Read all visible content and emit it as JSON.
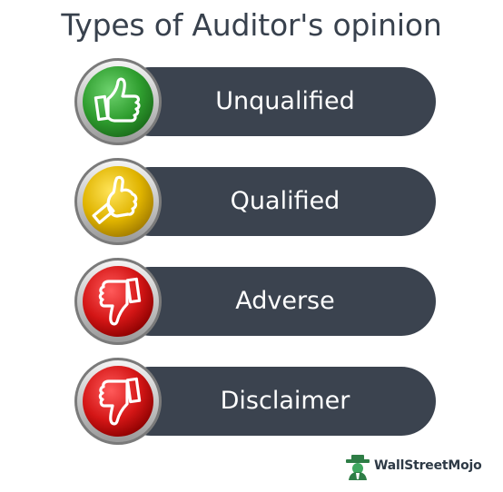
{
  "title": "Types of Auditor's opinion",
  "items": [
    {
      "label": "Unqualified",
      "color": "#2f9e2f",
      "icon": "thumbs-up-icon"
    },
    {
      "label": "Qualified",
      "color": "#e0b400",
      "icon": "thumbs-up-icon"
    },
    {
      "label": "Adverse",
      "color": "#d41616",
      "icon": "thumbs-down-icon"
    },
    {
      "label": "Disclaimer",
      "color": "#d41616",
      "icon": "thumbs-down-icon"
    }
  ],
  "brand": {
    "name": "WallStreetMojo",
    "icon": "wallstreetmojo-logo-icon"
  }
}
